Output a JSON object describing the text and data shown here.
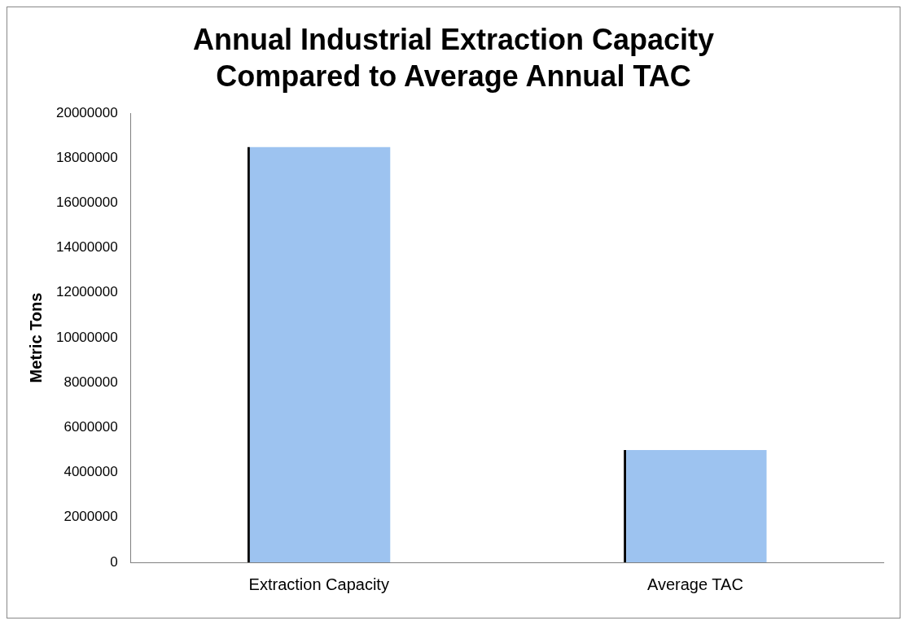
{
  "chart_data": {
    "type": "bar",
    "title": "Annual Industrial Extraction Capacity Compared to Average Annual TAC",
    "ylabel": "Metric Tons",
    "categories": [
      "Extraction Capacity",
      "Average TAC"
    ],
    "values": [
      18500000,
      5000000
    ],
    "color": "#9dc3f0",
    "ylim": [
      0,
      20000000
    ],
    "yticks": [
      0,
      2000000,
      4000000,
      6000000,
      8000000,
      10000000,
      12000000,
      14000000,
      16000000,
      18000000,
      20000000
    ],
    "grid": false,
    "legend": false
  }
}
